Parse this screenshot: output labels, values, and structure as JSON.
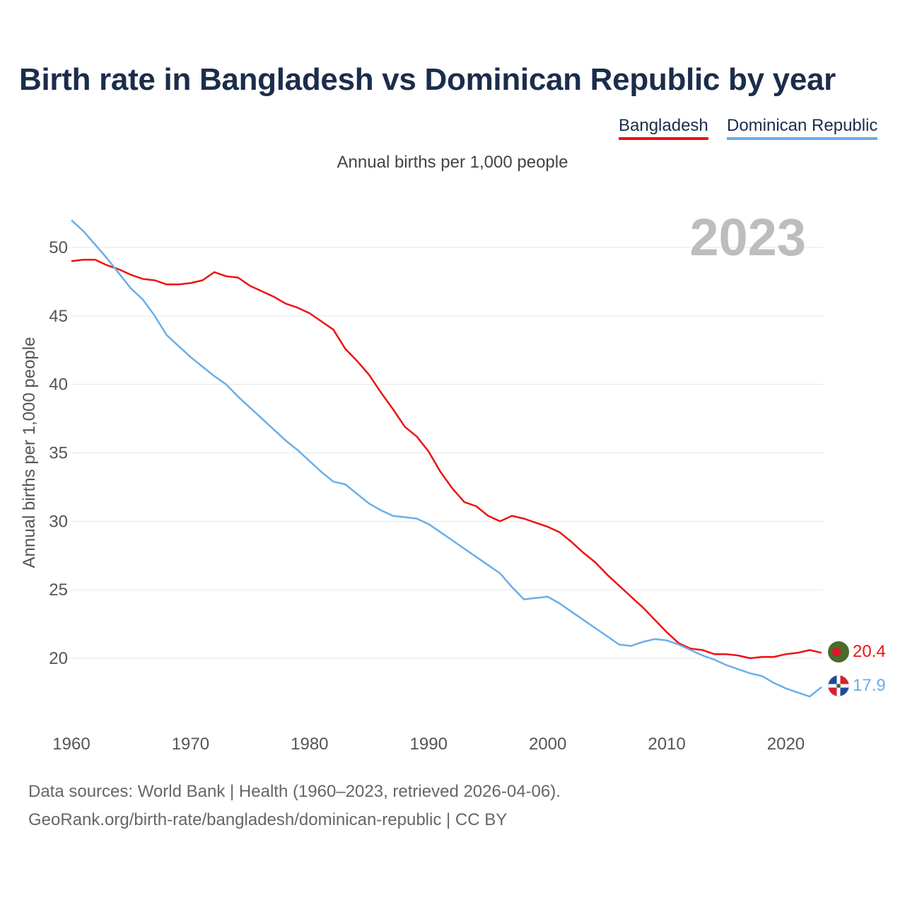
{
  "title": "Birth rate in Bangladesh vs Dominican Republic by year",
  "subtitle": "Annual births per 1,000 people",
  "ylabel": "Annual births per 1,000 people",
  "year_label": "2023",
  "legend": [
    {
      "name": "Bangladesh",
      "color": "#ee1111"
    },
    {
      "name": "Dominican Republic",
      "color": "#6aaee8"
    }
  ],
  "sources": {
    "line1": "Data sources: World Bank | Health (1960–2023, retrieved 2026-04-06).",
    "line2": "GeoRank.org/birth-rate/bangladesh/dominican-republic | CC BY"
  },
  "chart_data": {
    "type": "line",
    "title": "Birth rate in Bangladesh vs Dominican Republic by year",
    "xlabel": "",
    "ylabel": "Annual births per 1,000 people",
    "xlim": [
      1960,
      2023
    ],
    "ylim": [
      17,
      52
    ],
    "xticks": [
      1960,
      1970,
      1980,
      1990,
      2000,
      2010,
      2020
    ],
    "yticks": [
      20,
      25,
      30,
      35,
      40,
      45,
      50
    ],
    "grid": true,
    "x": [
      1960,
      1961,
      1962,
      1963,
      1964,
      1965,
      1966,
      1967,
      1968,
      1969,
      1970,
      1971,
      1972,
      1973,
      1974,
      1975,
      1976,
      1977,
      1978,
      1979,
      1980,
      1981,
      1982,
      1983,
      1984,
      1985,
      1986,
      1987,
      1988,
      1989,
      1990,
      1991,
      1992,
      1993,
      1994,
      1995,
      1996,
      1997,
      1998,
      1999,
      2000,
      2001,
      2002,
      2003,
      2004,
      2005,
      2006,
      2007,
      2008,
      2009,
      2010,
      2011,
      2012,
      2013,
      2014,
      2015,
      2016,
      2017,
      2018,
      2019,
      2020,
      2021,
      2022,
      2023
    ],
    "series": [
      {
        "name": "Bangladesh",
        "color": "#ee1111",
        "end_label": "20.4",
        "values": [
          49.0,
          49.1,
          49.1,
          48.7,
          48.4,
          48.0,
          47.7,
          47.6,
          47.3,
          47.3,
          47.4,
          47.6,
          48.2,
          47.9,
          47.8,
          47.2,
          46.8,
          46.4,
          45.9,
          45.6,
          45.2,
          44.6,
          44.0,
          42.6,
          41.7,
          40.7,
          39.4,
          38.2,
          36.9,
          36.2,
          35.1,
          33.6,
          32.4,
          31.4,
          31.1,
          30.4,
          30.0,
          30.4,
          30.2,
          29.9,
          29.6,
          29.2,
          28.5,
          27.7,
          27.0,
          26.1,
          25.3,
          24.5,
          23.7,
          22.8,
          21.9,
          21.1,
          20.7,
          20.6,
          20.3,
          20.3,
          20.2,
          20.0,
          20.1,
          20.1,
          20.3,
          20.4,
          20.6,
          20.4
        ]
      },
      {
        "name": "Dominican Republic",
        "color": "#6aaee8",
        "end_label": "17.9",
        "values": [
          52.0,
          51.2,
          50.2,
          49.2,
          48.1,
          47.0,
          46.2,
          45.0,
          43.6,
          42.8,
          42.0,
          41.3,
          40.6,
          40.0,
          39.1,
          38.3,
          37.5,
          36.7,
          35.9,
          35.2,
          34.4,
          33.6,
          32.9,
          32.7,
          32.0,
          31.3,
          30.8,
          30.4,
          30.3,
          30.2,
          29.8,
          29.2,
          28.6,
          28.0,
          27.4,
          26.8,
          26.2,
          25.2,
          24.3,
          24.4,
          24.5,
          24.0,
          23.4,
          22.8,
          22.2,
          21.6,
          21.0,
          20.9,
          21.2,
          21.4,
          21.3,
          21.0,
          20.6,
          20.2,
          19.9,
          19.5,
          19.2,
          18.9,
          18.7,
          18.2,
          17.8,
          17.5,
          17.2,
          17.9
        ]
      }
    ]
  }
}
